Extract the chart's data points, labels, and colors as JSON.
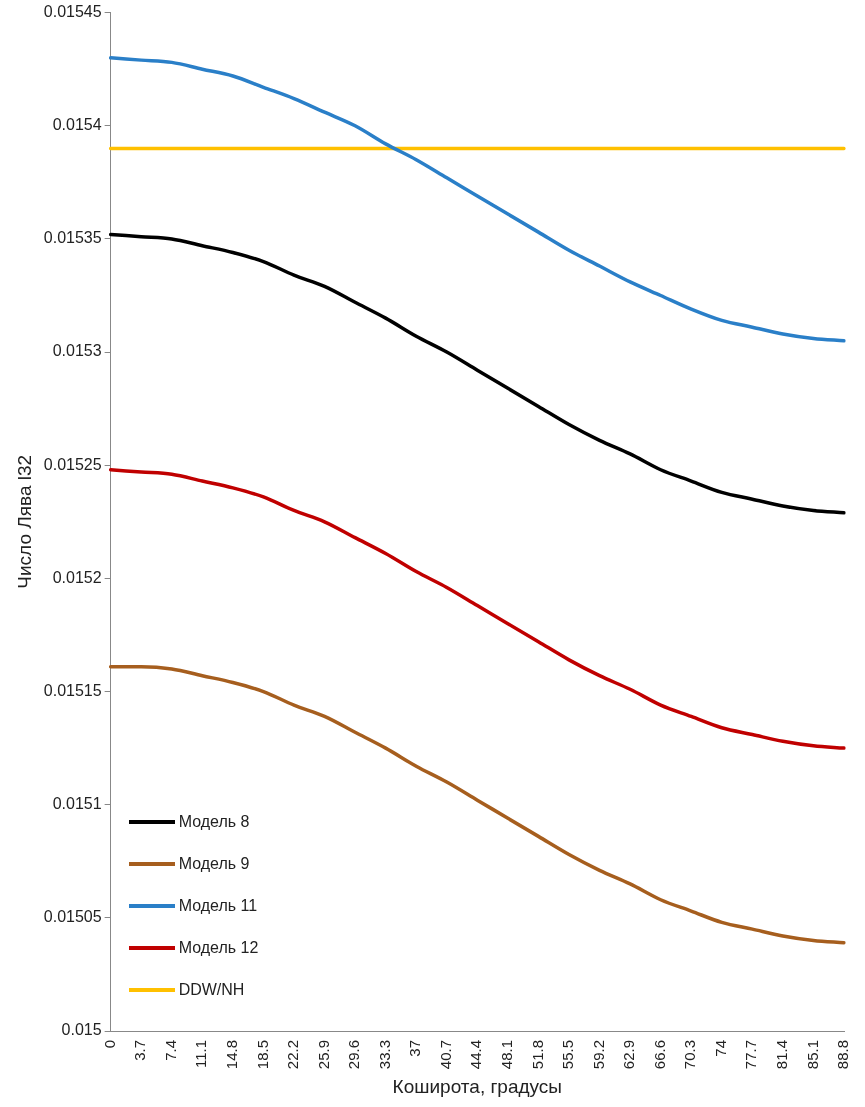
{
  "chart_data": {
    "type": "line",
    "xlabel": "Коширота, градусы",
    "ylabel": "Число Лява l32",
    "categories": [
      "0",
      "3.7",
      "7.4",
      "11.1",
      "14.8",
      "18.5",
      "22.2",
      "25.9",
      "29.6",
      "33.3",
      "37",
      "40.7",
      "44.4",
      "48.1",
      "51.8",
      "55.5",
      "59.2",
      "62.9",
      "66.6",
      "70.3",
      "74",
      "77.7",
      "81.4",
      "85.1",
      "88.8"
    ],
    "ylim": [
      0.015,
      0.01545
    ],
    "yticks": [
      0.015,
      0.01505,
      0.0151,
      0.01515,
      0.0152,
      0.01525,
      0.0153,
      0.01535,
      0.0154,
      0.01545
    ],
    "grid": false,
    "legend": "bottom left",
    "marker": "none",
    "line_style": "solid",
    "series": [
      {
        "name": "Модель 8",
        "color": "#000000",
        "values": [
          0.015352,
          0.015351,
          0.01535,
          0.015347,
          0.015344,
          0.01534,
          0.015334,
          0.015329,
          0.015322,
          0.015315,
          0.015307,
          0.0153,
          0.015292,
          0.015284,
          0.015276,
          0.015268,
          0.015261,
          0.015255,
          0.015248,
          0.015243,
          0.015238,
          0.015235,
          0.015232,
          0.01523,
          0.015229
        ]
      },
      {
        "name": "Модель 9",
        "color": "#a65e1e",
        "values": [
          0.015161,
          0.015161,
          0.01516,
          0.015157,
          0.015154,
          0.01515,
          0.015144,
          0.015139,
          0.015132,
          0.015125,
          0.015117,
          0.01511,
          0.015102,
          0.015094,
          0.015086,
          0.015078,
          0.015071,
          0.015065,
          0.015058,
          0.015053,
          0.015048,
          0.015045,
          0.015042,
          0.01504,
          0.015039
        ]
      },
      {
        "name": "Модель 11",
        "color": "#2a7fc8",
        "values": [
          0.01543,
          0.015429,
          0.015428,
          0.015425,
          0.015422,
          0.015417,
          0.015412,
          0.015406,
          0.0154,
          0.015392,
          0.015385,
          0.015377,
          0.015369,
          0.015361,
          0.015353,
          0.015345,
          0.015338,
          0.015331,
          0.015325,
          0.015319,
          0.015314,
          0.015311,
          0.015308,
          0.015306,
          0.015305
        ]
      },
      {
        "name": "Модель 12",
        "color": "#c00000",
        "values": [
          0.015248,
          0.015247,
          0.015246,
          0.015243,
          0.01524,
          0.015236,
          0.01523,
          0.015225,
          0.015218,
          0.015211,
          0.015203,
          0.015196,
          0.015188,
          0.01518,
          0.015172,
          0.015164,
          0.015157,
          0.015151,
          0.015144,
          0.015139,
          0.015134,
          0.015131,
          0.015128,
          0.015126,
          0.015125
        ]
      },
      {
        "name": "DDW/NH",
        "color": "#ffc000",
        "values": [
          0.01539,
          0.01539,
          0.01539,
          0.01539,
          0.01539,
          0.01539,
          0.01539,
          0.01539,
          0.01539,
          0.01539,
          0.01539,
          0.01539,
          0.01539,
          0.01539,
          0.01539,
          0.01539,
          0.01539,
          0.01539,
          0.01539,
          0.01539,
          0.01539,
          0.01539,
          0.01539,
          0.01539,
          0.01539
        ]
      }
    ]
  }
}
